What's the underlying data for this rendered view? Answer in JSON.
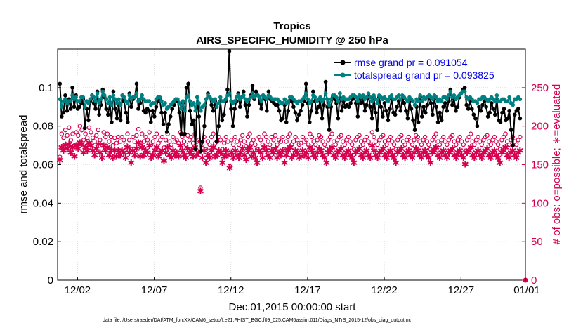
{
  "chart_data": {
    "type": "line",
    "title": "Tropics",
    "subtitle": "AIRS_SPECIFIC_HUMIDITY @ 250 hPa",
    "xlabel": "Dec.01,2015 00:00:00 start",
    "ylabel": "rmse and totalspread",
    "y2label": "# of obs: o=possible; ∗=evaluated",
    "footer": "data file: /Users/raeder/DAI/ATM_forcXX/CAM6_setup/f.e21.FHIST_BGC.f09_025.CAM6assim.011/Diags_NTrS_2015-12/obs_diag_output.nc",
    "xlim": [
      0.7,
      31.2
    ],
    "ylim": [
      0,
      0.12
    ],
    "y2lim": [
      0,
      300
    ],
    "xticks": [
      2,
      7,
      12,
      17,
      22,
      27,
      32
    ],
    "xticklabels": [
      "12/02",
      "12/07",
      "12/12",
      "12/17",
      "12/22",
      "12/27",
      "01/01"
    ],
    "yticks": [
      0,
      0.02,
      0.04,
      0.06,
      0.08,
      0.1
    ],
    "yticklabels": [
      "0",
      "0.02",
      "0.04",
      "0.06",
      "0.08",
      "0.1"
    ],
    "y2ticks": [
      0,
      50,
      100,
      150,
      200,
      250
    ],
    "y2ticklabels": [
      "0",
      "50",
      "100",
      "150",
      "200",
      "250"
    ],
    "colors": {
      "rmse": "#000000",
      "spread": "#008080",
      "obs": "#d6004f",
      "legend_text": "#0000ee"
    },
    "series": [
      {
        "name": "rmse grand pr = 0.091054",
        "axis": "left",
        "values": [
          0.102,
          0.085,
          0.087,
          0.096,
          0.088,
          0.094,
          0.089,
          0.1,
          0.09,
          0.096,
          0.089,
          0.09,
          0.092,
          0.094,
          0.079,
          0.089,
          0.083,
          0.093,
          0.096,
          0.092,
          0.089,
          0.098,
          0.086,
          0.091,
          0.099,
          0.095,
          0.089,
          0.086,
          0.092,
          0.082,
          0.098,
          0.089,
          0.084,
          0.091,
          0.083,
          0.096,
          0.093,
          0.087,
          0.082,
          0.097,
          0.09,
          0.094,
          0.095,
          0.102,
          0.089,
          0.092,
          0.096,
          0.088,
          0.087,
          0.089,
          0.088,
          0.082,
          0.088,
          0.085,
          0.09,
          0.093,
          0.094,
          0.087,
          0.081,
          0.087,
          0.077,
          0.081,
          0.085,
          0.089,
          0.091,
          0.094,
          0.093,
          0.087,
          0.076,
          0.092,
          0.076,
          0.1,
          0.102,
          0.088,
          0.081,
          0.083,
          0.068,
          0.095,
          0.085,
          0.067,
          0.072,
          0.08,
          0.094,
          0.097,
          0.095,
          0.091,
          0.088,
          0.093,
          0.072,
          0.08,
          0.093,
          0.083,
          0.086,
          0.093,
          0.099,
          0.119,
          0.089,
          0.08,
          0.089,
          0.093,
          0.097,
          0.09,
          0.095,
          0.098,
          0.091,
          0.085,
          0.091,
          0.096,
          0.101,
          0.094,
          0.098,
          0.096,
          0.092,
          0.089,
          0.096,
          0.094,
          0.088,
          0.098,
          0.094,
          0.093,
          0.092,
          0.091,
          0.091,
          0.088,
          0.083,
          0.084,
          0.091,
          0.082,
          0.088,
          0.095,
          0.093,
          0.09,
          0.087,
          0.083,
          0.086,
          0.088,
          0.091,
          0.093,
          0.102,
          0.092,
          0.082,
          0.088,
          0.098,
          0.093,
          0.087,
          0.09,
          0.093,
          0.084,
          0.091,
          0.103,
          0.09,
          0.078,
          0.09,
          0.095,
          0.094,
          0.092,
          0.084,
          0.097,
          0.088,
          0.093,
          0.09,
          0.091,
          0.09,
          0.092,
          0.094,
          0.095,
          0.092,
          0.085,
          0.096,
          0.092,
          0.094,
          0.088,
          0.091,
          0.096,
          0.09,
          0.084,
          0.095,
          0.087,
          0.078,
          0.095,
          0.09,
          0.085,
          0.092,
          0.088,
          0.083,
          0.089,
          0.094,
          0.087,
          0.086,
          0.09,
          0.093,
          0.088,
          0.094,
          0.092,
          0.088,
          0.084,
          0.093,
          0.089,
          0.083,
          0.078,
          0.09,
          0.082,
          0.095,
          0.085,
          0.09,
          0.087,
          0.091,
          0.095,
          0.092,
          0.086,
          0.094,
          0.09,
          0.082,
          0.087,
          0.083,
          0.09,
          0.092,
          0.088,
          0.093,
          0.099,
          0.091,
          0.094,
          0.088,
          0.09,
          0.095,
          0.097,
          0.099,
          0.1,
          0.091,
          0.089,
          0.093,
          0.089,
          0.086,
          0.084,
          0.08,
          0.09,
          0.088,
          0.091,
          0.093,
          0.09,
          0.085,
          0.087,
          0.092,
          0.089,
          0.086,
          0.094,
          0.083,
          0.082,
          0.087,
          0.089,
          0.083,
          0.084,
          0.088,
          0.078,
          0.07,
          0.086,
          0.088,
          0.089,
          0.084
        ]
      },
      {
        "name": "totalspread grand pr = 0.093825",
        "axis": "left",
        "values": [
          0.094,
          0.09,
          0.093,
          0.094,
          0.092,
          0.093,
          0.093,
          0.096,
          0.094,
          0.095,
          0.093,
          0.093,
          0.095,
          0.095,
          0.09,
          0.093,
          0.092,
          0.094,
          0.096,
          0.095,
          0.093,
          0.097,
          0.092,
          0.094,
          0.098,
          0.096,
          0.094,
          0.092,
          0.095,
          0.091,
          0.096,
          0.094,
          0.092,
          0.094,
          0.091,
          0.096,
          0.095,
          0.093,
          0.092,
          0.096,
          0.094,
          0.095,
          0.095,
          0.097,
          0.093,
          0.094,
          0.096,
          0.094,
          0.093,
          0.093,
          0.093,
          0.091,
          0.092,
          0.092,
          0.094,
          0.095,
          0.095,
          0.093,
          0.091,
          0.092,
          0.089,
          0.09,
          0.091,
          0.092,
          0.093,
          0.094,
          0.094,
          0.092,
          0.089,
          0.093,
          0.088,
          0.095,
          0.096,
          0.093,
          0.091,
          0.092,
          0.088,
          0.095,
          0.092,
          0.088,
          0.09,
          0.091,
          0.094,
          0.096,
          0.095,
          0.094,
          0.093,
          0.094,
          0.09,
          0.092,
          0.095,
          0.093,
          0.093,
          0.094,
          0.096,
          0.097,
          0.093,
          0.092,
          0.093,
          0.095,
          0.096,
          0.094,
          0.095,
          0.096,
          0.094,
          0.093,
          0.094,
          0.095,
          0.097,
          0.095,
          0.096,
          0.096,
          0.095,
          0.093,
          0.096,
          0.095,
          0.094,
          0.096,
          0.095,
          0.094,
          0.094,
          0.094,
          0.094,
          0.093,
          0.092,
          0.092,
          0.094,
          0.092,
          0.093,
          0.095,
          0.095,
          0.094,
          0.093,
          0.092,
          0.093,
          0.093,
          0.094,
          0.095,
          0.097,
          0.094,
          0.092,
          0.093,
          0.096,
          0.095,
          0.093,
          0.094,
          0.095,
          0.093,
          0.094,
          0.097,
          0.094,
          0.091,
          0.094,
          0.096,
          0.096,
          0.095,
          0.093,
          0.097,
          0.094,
          0.095,
          0.094,
          0.094,
          0.094,
          0.095,
          0.096,
          0.096,
          0.095,
          0.093,
          0.096,
          0.095,
          0.096,
          0.094,
          0.095,
          0.097,
          0.095,
          0.093,
          0.096,
          0.094,
          0.092,
          0.096,
          0.095,
          0.094,
          0.095,
          0.094,
          0.093,
          0.095,
          0.096,
          0.094,
          0.094,
          0.095,
          0.096,
          0.094,
          0.096,
          0.095,
          0.094,
          0.093,
          0.095,
          0.094,
          0.093,
          0.091,
          0.094,
          0.093,
          0.096,
          0.093,
          0.095,
          0.094,
          0.095,
          0.096,
          0.095,
          0.094,
          0.096,
          0.095,
          0.093,
          0.094,
          0.093,
          0.095,
          0.095,
          0.094,
          0.096,
          0.098,
          0.095,
          0.096,
          0.094,
          0.095,
          0.096,
          0.097,
          0.098,
          0.098,
          0.095,
          0.094,
          0.095,
          0.094,
          0.093,
          0.093,
          0.092,
          0.094,
          0.094,
          0.095,
          0.095,
          0.094,
          0.093,
          0.094,
          0.095,
          0.094,
          0.093,
          0.096,
          0.093,
          0.093,
          0.094,
          0.094,
          0.093,
          0.093,
          0.095,
          0.092,
          0.091,
          0.094,
          0.094,
          0.095,
          0.094
        ]
      },
      {
        "name": "possible obs",
        "axis": "right",
        "marker": "o",
        "values": [
          160,
          190,
          185,
          195,
          188,
          198,
          182,
          190,
          175,
          192,
          188,
          200,
          195,
          182,
          190,
          185,
          198,
          192,
          185,
          180,
          188,
          195,
          182,
          175,
          192,
          186,
          190,
          180,
          186,
          175,
          185,
          178,
          186,
          180,
          186,
          182,
          176,
          190,
          182,
          170,
          186,
          180,
          188,
          196,
          178,
          190,
          180,
          186,
          182,
          192,
          176,
          180,
          186,
          190,
          178,
          182,
          186,
          172,
          182,
          190,
          180,
          176,
          186,
          180,
          182,
          178,
          192,
          186,
          180,
          176,
          188,
          182,
          186,
          178,
          190,
          180,
          182,
          120,
          176,
          186,
          170,
          180,
          176,
          186,
          190,
          178,
          180,
          186,
          182,
          170,
          178,
          186,
          180,
          148,
          182,
          176,
          186,
          180,
          176,
          182,
          188,
          180,
          174,
          186,
          190,
          178,
          182,
          176,
          170,
          186,
          182,
          176,
          190,
          186,
          180,
          176,
          186,
          182,
          188,
          176,
          182,
          180,
          186,
          170,
          180,
          186,
          190,
          176,
          180,
          186,
          182,
          176,
          178,
          186,
          180,
          182,
          176,
          190,
          186,
          180,
          176,
          182,
          188,
          186,
          180,
          176,
          170,
          182,
          186,
          190,
          180,
          176,
          182,
          186,
          188,
          180,
          176,
          182,
          186,
          180,
          176,
          170,
          182,
          186,
          188,
          180,
          176,
          182,
          186,
          180,
          176,
          192,
          186,
          180,
          176,
          182,
          186,
          188,
          180,
          176,
          182,
          186,
          180,
          176,
          170,
          182,
          186,
          188,
          180,
          176,
          182,
          186,
          180,
          176,
          182,
          188,
          186,
          180,
          176,
          182,
          186,
          180,
          176,
          170,
          182,
          186,
          190,
          180,
          176,
          182,
          186,
          180,
          176,
          182,
          186,
          188,
          180,
          176,
          182,
          186,
          180,
          176,
          168,
          182,
          186,
          190,
          180,
          176,
          182,
          186,
          180,
          176,
          182,
          186,
          188,
          180,
          176,
          182,
          186,
          180,
          176,
          170,
          182,
          186,
          190,
          180,
          176,
          182,
          186,
          180,
          176,
          182,
          186
        ]
      },
      {
        "name": "evaluated obs",
        "axis": "right",
        "marker": "*",
        "values": [
          155,
          172,
          168,
          175,
          170,
          176,
          165,
          172,
          160,
          174,
          170,
          178,
          176,
          165,
          172,
          168,
          178,
          174,
          168,
          162,
          170,
          176,
          165,
          158,
          174,
          168,
          172,
          162,
          168,
          158,
          168,
          160,
          168,
          162,
          168,
          165,
          158,
          172,
          165,
          152,
          168,
          162,
          170,
          178,
          160,
          172,
          162,
          168,
          165,
          174,
          158,
          162,
          168,
          172,
          160,
          165,
          168,
          154,
          165,
          172,
          162,
          158,
          168,
          162,
          165,
          160,
          174,
          168,
          162,
          158,
          170,
          165,
          168,
          160,
          172,
          162,
          165,
          115,
          158,
          168,
          152,
          162,
          158,
          168,
          172,
          160,
          162,
          168,
          165,
          152,
          160,
          168,
          162,
          145,
          165,
          158,
          168,
          162,
          158,
          165,
          170,
          162,
          156,
          168,
          172,
          160,
          165,
          158,
          152,
          168,
          165,
          158,
          172,
          168,
          162,
          158,
          168,
          165,
          170,
          158,
          165,
          162,
          168,
          152,
          162,
          168,
          172,
          158,
          162,
          168,
          165,
          158,
          160,
          168,
          162,
          165,
          158,
          172,
          168,
          162,
          158,
          165,
          170,
          168,
          162,
          158,
          152,
          165,
          168,
          172,
          162,
          158,
          165,
          168,
          170,
          162,
          158,
          165,
          168,
          162,
          158,
          152,
          165,
          168,
          170,
          162,
          158,
          165,
          168,
          162,
          158,
          174,
          168,
          162,
          158,
          165,
          168,
          170,
          162,
          158,
          165,
          168,
          162,
          158,
          152,
          165,
          168,
          170,
          162,
          158,
          165,
          168,
          162,
          158,
          165,
          170,
          168,
          162,
          158,
          165,
          168,
          162,
          158,
          152,
          165,
          168,
          172,
          162,
          158,
          165,
          168,
          162,
          158,
          165,
          168,
          170,
          162,
          158,
          165,
          168,
          162,
          158,
          150,
          165,
          168,
          172,
          162,
          158,
          165,
          168,
          162,
          158,
          165,
          168,
          170,
          162,
          158,
          165,
          168,
          162,
          158,
          152,
          165,
          168,
          172,
          162,
          158,
          165,
          168,
          162,
          158,
          165,
          168
        ]
      }
    ],
    "legend": [
      "rmse grand pr = 0.091054",
      "totalspread grand pr = 0.093825"
    ],
    "legend_position": "top-right",
    "grid": "dotted"
  }
}
